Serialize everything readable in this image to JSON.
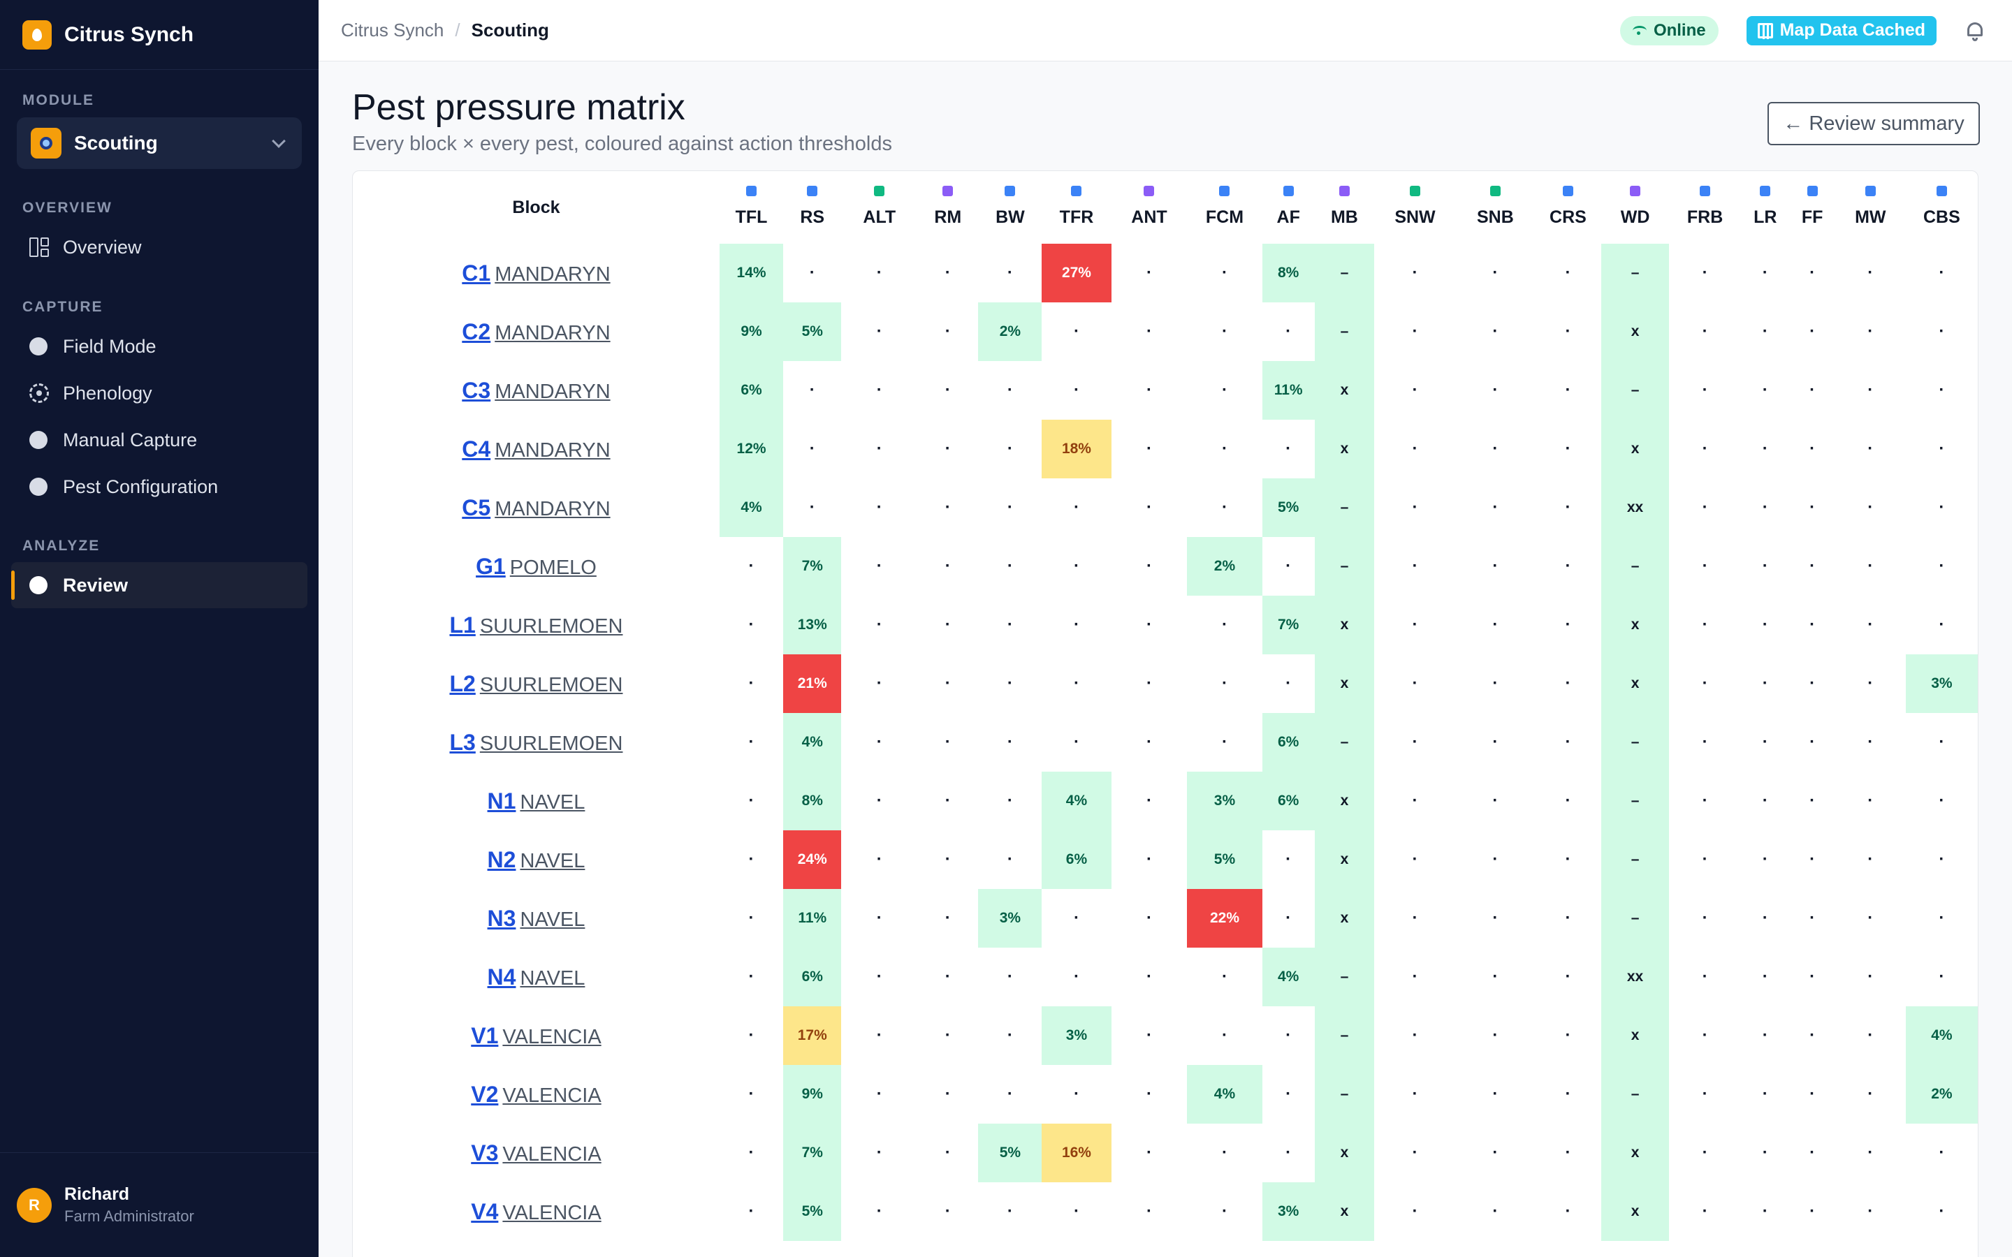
{
  "app": {
    "name": "Citrus Synch"
  },
  "sidebar": {
    "module_label": "MODULE",
    "module_value": "Scouting",
    "sections": [
      {
        "label": "OVERVIEW",
        "items": [
          {
            "label": "Overview",
            "icon": "layout-grid-icon"
          }
        ]
      },
      {
        "label": "CAPTURE",
        "items": [
          {
            "label": "Field Mode",
            "icon": "circle-icon"
          },
          {
            "label": "Phenology",
            "icon": "flower-icon"
          },
          {
            "label": "Manual Capture",
            "icon": "circle-icon"
          },
          {
            "label": "Pest Configuration",
            "icon": "circle-icon"
          }
        ]
      },
      {
        "label": "ANALYZE",
        "items": [
          {
            "label": "Review",
            "icon": "circle-icon",
            "active": true
          }
        ]
      }
    ],
    "user": {
      "initial": "R",
      "name": "Richard",
      "role": "Farm Administrator"
    }
  },
  "topbar": {
    "breadcrumb": [
      "Citrus Synch",
      "Scouting"
    ],
    "breadcrumb_sep": "/",
    "online": "Online",
    "cached": "Map Data Cached"
  },
  "page": {
    "title": "Pest pressure matrix",
    "subtitle": "Every block × every pest, coloured against action thresholds",
    "back_button": "← Review summary"
  },
  "colors": {
    "blue": "#3b82f6",
    "green": "#10b981",
    "purple": "#8b5cf6",
    "red": "#ef4444",
    "amber": "#fde68a",
    "mint": "#d1fae5"
  },
  "matrix": {
    "block_header": "Block",
    "pests": [
      {
        "code": "TFL",
        "color": "#3b82f6"
      },
      {
        "code": "RS",
        "color": "#3b82f6"
      },
      {
        "code": "ALT",
        "color": "#10b981"
      },
      {
        "code": "RM",
        "color": "#8b5cf6"
      },
      {
        "code": "BW",
        "color": "#3b82f6"
      },
      {
        "code": "TFR",
        "color": "#3b82f6"
      },
      {
        "code": "ANT",
        "color": "#8b5cf6"
      },
      {
        "code": "FCM",
        "color": "#3b82f6"
      },
      {
        "code": "AF",
        "color": "#3b82f6"
      },
      {
        "code": "MB",
        "color": "#8b5cf6"
      },
      {
        "code": "SNW",
        "color": "#10b981"
      },
      {
        "code": "SNB",
        "color": "#10b981"
      },
      {
        "code": "CRS",
        "color": "#3b82f6"
      },
      {
        "code": "WD",
        "color": "#8b5cf6"
      },
      {
        "code": "FRB",
        "color": "#3b82f6"
      },
      {
        "code": "LR",
        "color": "#3b82f6"
      },
      {
        "code": "FF",
        "color": "#3b82f6"
      },
      {
        "code": "MW",
        "color": "#3b82f6"
      },
      {
        "code": "CBS",
        "color": "#3b82f6"
      }
    ],
    "rows": [
      {
        "code": "C1",
        "name": "MANDARYN",
        "cells": [
          "14%",
          "·",
          "·",
          "·",
          "·",
          "27%",
          "·",
          "·",
          "8%",
          "–",
          "·",
          "·",
          "·",
          "–",
          "·",
          "·",
          "·",
          "·",
          "·"
        ],
        "s": [
          "g",
          "",
          "",
          "",
          "",
          "r",
          "",
          "",
          "g",
          "gc",
          "",
          "",
          "",
          "gc",
          "",
          "",
          "",
          "",
          ""
        ]
      },
      {
        "code": "C2",
        "name": "MANDARYN",
        "cells": [
          "9%",
          "5%",
          "·",
          "·",
          "2%",
          "·",
          "·",
          "·",
          "·",
          "–",
          "·",
          "·",
          "·",
          "x",
          "·",
          "·",
          "·",
          "·",
          "·"
        ],
        "s": [
          "g",
          "g",
          "",
          "",
          "g",
          "",
          "",
          "",
          "",
          "gc",
          "",
          "",
          "",
          "gc",
          "",
          "",
          "",
          "",
          ""
        ]
      },
      {
        "code": "C3",
        "name": "MANDARYN",
        "cells": [
          "6%",
          "·",
          "·",
          "·",
          "·",
          "·",
          "·",
          "·",
          "11%",
          "x",
          "·",
          "·",
          "·",
          "–",
          "·",
          "·",
          "·",
          "·",
          "·"
        ],
        "s": [
          "g",
          "",
          "",
          "",
          "",
          "",
          "",
          "",
          "g",
          "gc",
          "",
          "",
          "",
          "gc",
          "",
          "",
          "",
          "",
          ""
        ]
      },
      {
        "code": "C4",
        "name": "MANDARYN",
        "cells": [
          "12%",
          "·",
          "·",
          "·",
          "·",
          "18%",
          "·",
          "·",
          "·",
          "x",
          "·",
          "·",
          "·",
          "x",
          "·",
          "·",
          "·",
          "·",
          "·"
        ],
        "s": [
          "g",
          "",
          "",
          "",
          "",
          "y",
          "",
          "",
          "",
          "gc",
          "",
          "",
          "",
          "gc",
          "",
          "",
          "",
          "",
          ""
        ]
      },
      {
        "code": "C5",
        "name": "MANDARYN",
        "cells": [
          "4%",
          "·",
          "·",
          "·",
          "·",
          "·",
          "·",
          "·",
          "5%",
          "–",
          "·",
          "·",
          "·",
          "xx",
          "·",
          "·",
          "·",
          "·",
          "·"
        ],
        "s": [
          "g",
          "",
          "",
          "",
          "",
          "",
          "",
          "",
          "g",
          "gc",
          "",
          "",
          "",
          "gc",
          "",
          "",
          "",
          "",
          ""
        ]
      },
      {
        "code": "G1",
        "name": "POMELO",
        "cells": [
          "·",
          "7%",
          "·",
          "·",
          "·",
          "·",
          "·",
          "2%",
          "·",
          "–",
          "·",
          "·",
          "·",
          "–",
          "·",
          "·",
          "·",
          "·",
          "·"
        ],
        "s": [
          "",
          "g",
          "",
          "",
          "",
          "",
          "",
          "g",
          "",
          "gc",
          "",
          "",
          "",
          "gc",
          "",
          "",
          "",
          "",
          ""
        ]
      },
      {
        "code": "L1",
        "name": "SUURLEMOEN",
        "cells": [
          "·",
          "13%",
          "·",
          "·",
          "·",
          "·",
          "·",
          "·",
          "7%",
          "x",
          "·",
          "·",
          "·",
          "x",
          "·",
          "·",
          "·",
          "·",
          "·"
        ],
        "s": [
          "",
          "g",
          "",
          "",
          "",
          "",
          "",
          "",
          "g",
          "gc",
          "",
          "",
          "",
          "gc",
          "",
          "",
          "",
          "",
          ""
        ]
      },
      {
        "code": "L2",
        "name": "SUURLEMOEN",
        "cells": [
          "·",
          "21%",
          "·",
          "·",
          "·",
          "·",
          "·",
          "·",
          "·",
          "x",
          "·",
          "·",
          "·",
          "x",
          "·",
          "·",
          "·",
          "·",
          "3%"
        ],
        "s": [
          "",
          "r",
          "",
          "",
          "",
          "",
          "",
          "",
          "",
          "gc",
          "",
          "",
          "",
          "gc",
          "",
          "",
          "",
          "",
          "g"
        ]
      },
      {
        "code": "L3",
        "name": "SUURLEMOEN",
        "cells": [
          "·",
          "4%",
          "·",
          "·",
          "·",
          "·",
          "·",
          "·",
          "6%",
          "–",
          "·",
          "·",
          "·",
          "–",
          "·",
          "·",
          "·",
          "·",
          "·"
        ],
        "s": [
          "",
          "g",
          "",
          "",
          "",
          "",
          "",
          "",
          "g",
          "gc",
          "",
          "",
          "",
          "gc",
          "",
          "",
          "",
          "",
          ""
        ]
      },
      {
        "code": "N1",
        "name": "NAVEL",
        "cells": [
          "·",
          "8%",
          "·",
          "·",
          "·",
          "4%",
          "·",
          "3%",
          "6%",
          "x",
          "·",
          "·",
          "·",
          "–",
          "·",
          "·",
          "·",
          "·",
          "·"
        ],
        "s": [
          "",
          "g",
          "",
          "",
          "",
          "g",
          "",
          "g",
          "g",
          "gc",
          "",
          "",
          "",
          "gc",
          "",
          "",
          "",
          "",
          ""
        ]
      },
      {
        "code": "N2",
        "name": "NAVEL",
        "cells": [
          "·",
          "24%",
          "·",
          "·",
          "·",
          "6%",
          "·",
          "5%",
          "·",
          "x",
          "·",
          "·",
          "·",
          "–",
          "·",
          "·",
          "·",
          "·",
          "·"
        ],
        "s": [
          "",
          "r",
          "",
          "",
          "",
          "g",
          "",
          "g",
          "",
          "gc",
          "",
          "",
          "",
          "gc",
          "",
          "",
          "",
          "",
          ""
        ]
      },
      {
        "code": "N3",
        "name": "NAVEL",
        "cells": [
          "·",
          "11%",
          "·",
          "·",
          "3%",
          "·",
          "·",
          "22%",
          "·",
          "x",
          "·",
          "·",
          "·",
          "–",
          "·",
          "·",
          "·",
          "·",
          "·"
        ],
        "s": [
          "",
          "g",
          "",
          "",
          "g",
          "",
          "",
          "r",
          "",
          "gc",
          "",
          "",
          "",
          "gc",
          "",
          "",
          "",
          "",
          ""
        ]
      },
      {
        "code": "N4",
        "name": "NAVEL",
        "cells": [
          "·",
          "6%",
          "·",
          "·",
          "·",
          "·",
          "·",
          "·",
          "4%",
          "–",
          "·",
          "·",
          "·",
          "xx",
          "·",
          "·",
          "·",
          "·",
          "·"
        ],
        "s": [
          "",
          "g",
          "",
          "",
          "",
          "",
          "",
          "",
          "g",
          "gc",
          "",
          "",
          "",
          "gc",
          "",
          "",
          "",
          "",
          ""
        ]
      },
      {
        "code": "V1",
        "name": "VALENCIA",
        "cells": [
          "·",
          "17%",
          "·",
          "·",
          "·",
          "3%",
          "·",
          "·",
          "·",
          "–",
          "·",
          "·",
          "·",
          "x",
          "·",
          "·",
          "·",
          "·",
          "4%"
        ],
        "s": [
          "",
          "y",
          "",
          "",
          "",
          "g",
          "",
          "",
          "",
          "gc",
          "",
          "",
          "",
          "gc",
          "",
          "",
          "",
          "",
          "g"
        ]
      },
      {
        "code": "V2",
        "name": "VALENCIA",
        "cells": [
          "·",
          "9%",
          "·",
          "·",
          "·",
          "·",
          "·",
          "4%",
          "·",
          "–",
          "·",
          "·",
          "·",
          "–",
          "·",
          "·",
          "·",
          "·",
          "2%"
        ],
        "s": [
          "",
          "g",
          "",
          "",
          "",
          "",
          "",
          "g",
          "",
          "gc",
          "",
          "",
          "",
          "gc",
          "",
          "",
          "",
          "",
          "g"
        ]
      },
      {
        "code": "V3",
        "name": "VALENCIA",
        "cells": [
          "·",
          "7%",
          "·",
          "·",
          "5%",
          "16%",
          "·",
          "·",
          "·",
          "x",
          "·",
          "·",
          "·",
          "x",
          "·",
          "·",
          "·",
          "·",
          "·"
        ],
        "s": [
          "",
          "g",
          "",
          "",
          "g",
          "y",
          "",
          "",
          "",
          "gc",
          "",
          "",
          "",
          "gc",
          "",
          "",
          "",
          "",
          ""
        ]
      },
      {
        "code": "V4",
        "name": "VALENCIA",
        "cells": [
          "·",
          "5%",
          "·",
          "·",
          "·",
          "·",
          "·",
          "·",
          "3%",
          "x",
          "·",
          "·",
          "·",
          "x",
          "·",
          "·",
          "·",
          "·",
          "·"
        ],
        "s": [
          "",
          "g",
          "",
          "",
          "",
          "",
          "",
          "",
          "g",
          "gc",
          "",
          "",
          "",
          "gc",
          "",
          "",
          "",
          "",
          ""
        ]
      }
    ]
  }
}
